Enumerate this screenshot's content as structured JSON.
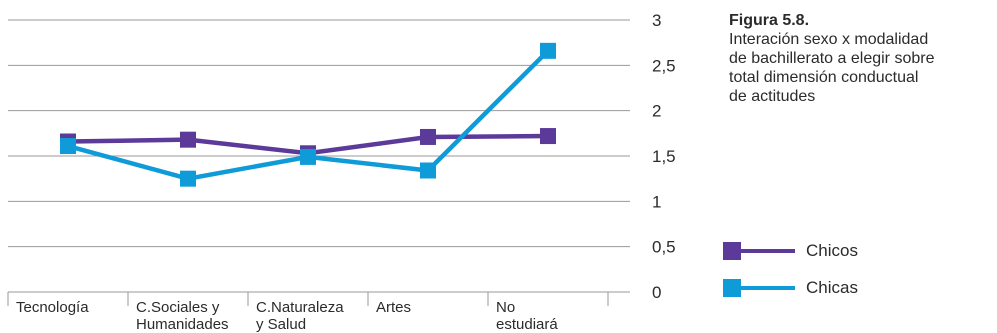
{
  "caption": {
    "figure": "Figura 5.8.",
    "text": "Interación sexo x modalidad\nde bachillerato a elegir sobre\ntotal dimensión conductual\nde actitudes"
  },
  "chart_data": {
    "type": "line",
    "categories": [
      "Tecnología",
      "C.Sociales y Humanidades",
      "C.Naturaleza y Salud",
      "Artes",
      "No estudiará"
    ],
    "category_lines": [
      [
        "Tecnología"
      ],
      [
        "C.Sociales y",
        "Humanidades"
      ],
      [
        "C.Naturaleza",
        "y Salud"
      ],
      [
        "Artes"
      ],
      [
        "No",
        "estudiará"
      ]
    ],
    "y_ticks": [
      "3",
      "2,5",
      "2",
      "1,5",
      "1",
      "0,5",
      "0"
    ],
    "ylim": [
      0,
      3
    ],
    "grid": true,
    "legend_position": "bottom-right",
    "series": [
      {
        "name": "Chicos",
        "values": [
          1.66,
          1.68,
          1.53,
          1.71,
          1.72
        ],
        "color": "#5b3a9a"
      },
      {
        "name": "Chicas",
        "values": [
          1.61,
          1.25,
          1.49,
          1.34,
          2.66
        ],
        "color": "#0f9bd7"
      }
    ]
  },
  "colors": {
    "grid": "#9a9a9a",
    "text": "#2b2b2b"
  }
}
